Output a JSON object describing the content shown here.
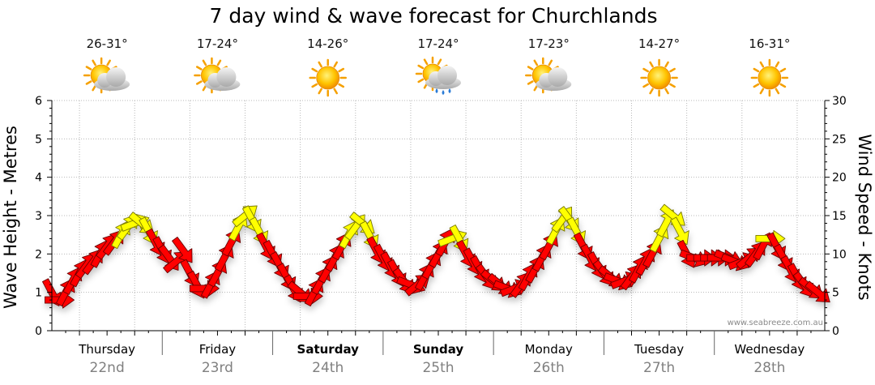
{
  "chart_data": {
    "type": "line",
    "title": "7 day wind & wave forecast for Churchlands",
    "ylabel_left": "Wave Height - Metres",
    "ylabel_right": "Wind Speed - Knots",
    "ylim_left": [
      0,
      6
    ],
    "ylim_right": [
      0,
      30
    ],
    "yticks_left": [
      "0",
      "1",
      "2",
      "3",
      "4",
      "5",
      "6"
    ],
    "yticks_right": [
      "0",
      "5",
      "10",
      "15",
      "20",
      "25",
      "30"
    ],
    "watermark": "www.seabreeze.com.au",
    "days": [
      {
        "name": "Thursday",
        "date": "22nd",
        "temp": "26-31°",
        "weather": "partly-cloudy",
        "bold": false
      },
      {
        "name": "Friday",
        "date": "23rd",
        "temp": "17-24°",
        "weather": "partly-cloudy",
        "bold": false
      },
      {
        "name": "Saturday",
        "date": "24th",
        "temp": "14-26°",
        "weather": "sunny",
        "bold": true
      },
      {
        "name": "Sunday",
        "date": "25th",
        "temp": "17-24°",
        "weather": "showers",
        "bold": true
      },
      {
        "name": "Monday",
        "date": "26th",
        "temp": "17-23°",
        "weather": "partly-cloudy",
        "bold": false
      },
      {
        "name": "Tuesday",
        "date": "27th",
        "temp": "14-27°",
        "weather": "sunny",
        "bold": false
      },
      {
        "name": "Wednesday",
        "date": "28th",
        "temp": "16-31°",
        "weather": "sunny",
        "bold": false
      }
    ],
    "series": [
      {
        "name": "Wind Speed - Knots",
        "axis": "right",
        "color_low": "#ff0000",
        "color_high": "#ffff00",
        "day_offset": 0.0,
        "step_days": 0.0625,
        "values": [
          5.0,
          4.0,
          5.0,
          6.5,
          7.5,
          8.5,
          9.0,
          10.0,
          11.0,
          11.5,
          12.5,
          13.5,
          14.0,
          14.0,
          13.0,
          11.5,
          10.5,
          9.5,
          9.0,
          10.5,
          7.5,
          6.0,
          5.5,
          6.0,
          7.5,
          9.5,
          11.5,
          13.5,
          15.0,
          14.5,
          13.0,
          11.0,
          10.0,
          8.5,
          7.0,
          5.5,
          5.0,
          4.5,
          5.0,
          6.5,
          8.0,
          9.5,
          11.0,
          12.5,
          13.5,
          14.0,
          12.5,
          10.5,
          9.5,
          8.5,
          7.5,
          6.5,
          6.0,
          6.0,
          7.0,
          8.5,
          10.0,
          11.5,
          12.0,
          12.0,
          10.0,
          9.0,
          8.0,
          7.0,
          6.5,
          6.0,
          5.5,
          5.5,
          6.0,
          7.0,
          8.0,
          9.5,
          11.0,
          13.0,
          14.5,
          14.5,
          13.0,
          11.0,
          9.5,
          8.5,
          7.5,
          7.0,
          6.5,
          6.5,
          7.0,
          8.0,
          9.0,
          10.0,
          12.0,
          14.0,
          15.0,
          13.0,
          10.0,
          9.5,
          9.5,
          9.5,
          9.5,
          9.5,
          9.5,
          9.0,
          9.0,
          9.5,
          10.0,
          11.0,
          12.0,
          11.0,
          9.5,
          8.0,
          7.0,
          6.0,
          5.5,
          5.0
        ]
      }
    ]
  }
}
